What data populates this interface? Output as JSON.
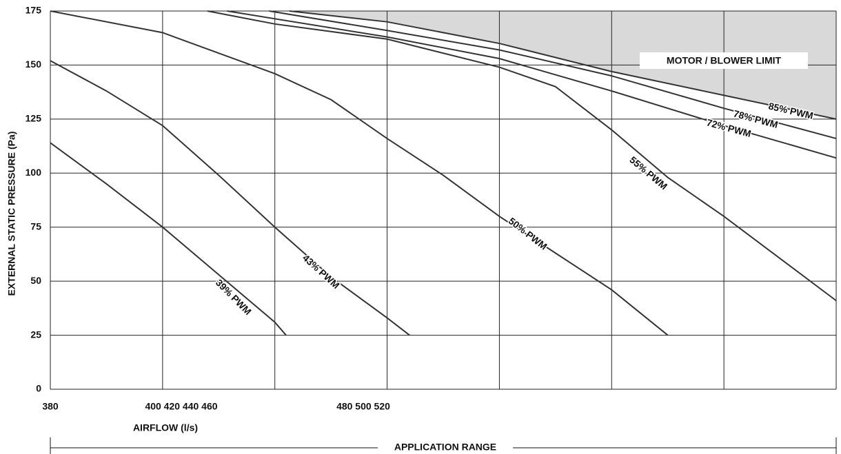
{
  "chart_data": {
    "type": "line",
    "y_label": "EXTERNAL STATIC PRESSURE (Pa)",
    "x_label": "AIRFLOW (l/s)",
    "x_tick_label_groups": [
      "380",
      "400 420 440 460",
      "480 500 520"
    ],
    "range_label": "APPLICATION RANGE",
    "limit_label": "MOTOR / BLOWER LIMIT",
    "limit_color": "#d9d9d9",
    "line_color": "#333333",
    "grid": true,
    "xlim": [
      380,
      520
    ],
    "xticks": [
      380,
      400,
      420,
      440,
      460,
      480,
      500,
      520
    ],
    "ylim": [
      0,
      175
    ],
    "yticks": [
      0,
      25,
      50,
      75,
      100,
      125,
      150,
      175
    ],
    "series": [
      {
        "name": "39% PWM",
        "x": [
          380,
          390,
          400,
          410,
          420,
          422
        ],
        "values": [
          114,
          95,
          75,
          53,
          31,
          25
        ]
      },
      {
        "name": "43% PWM",
        "x": [
          380,
          390,
          400,
          410,
          420,
          430,
          440,
          444
        ],
        "values": [
          152,
          138,
          122,
          99,
          75,
          52,
          33,
          25
        ]
      },
      {
        "name": "50% PWM",
        "x": [
          380,
          400,
          420,
          430,
          440,
          450,
          460,
          470,
          480,
          490
        ],
        "values": [
          175,
          165,
          146,
          134,
          116,
          99,
          80,
          63,
          46,
          25
        ]
      },
      {
        "name": "55% PWM",
        "x": [
          408,
          420,
          440,
          460,
          470,
          480,
          490,
          500,
          520
        ],
        "values": [
          175,
          169,
          162,
          149,
          140,
          120,
          98,
          80,
          41
        ]
      },
      {
        "name": "72% PWM",
        "x": [
          411.5,
          440,
          460,
          480,
          500,
          520
        ],
        "values": [
          175,
          163,
          153,
          138,
          122,
          107
        ]
      },
      {
        "name": "78% PWM",
        "x": [
          419,
          440,
          460,
          480,
          500,
          520
        ],
        "values": [
          175,
          166,
          157,
          145,
          130,
          116
        ]
      },
      {
        "name": "85% PWM",
        "x": [
          422.6,
          440,
          460,
          480,
          500,
          520
        ],
        "values": [
          175,
          170,
          160,
          147,
          136,
          125
        ]
      }
    ]
  }
}
